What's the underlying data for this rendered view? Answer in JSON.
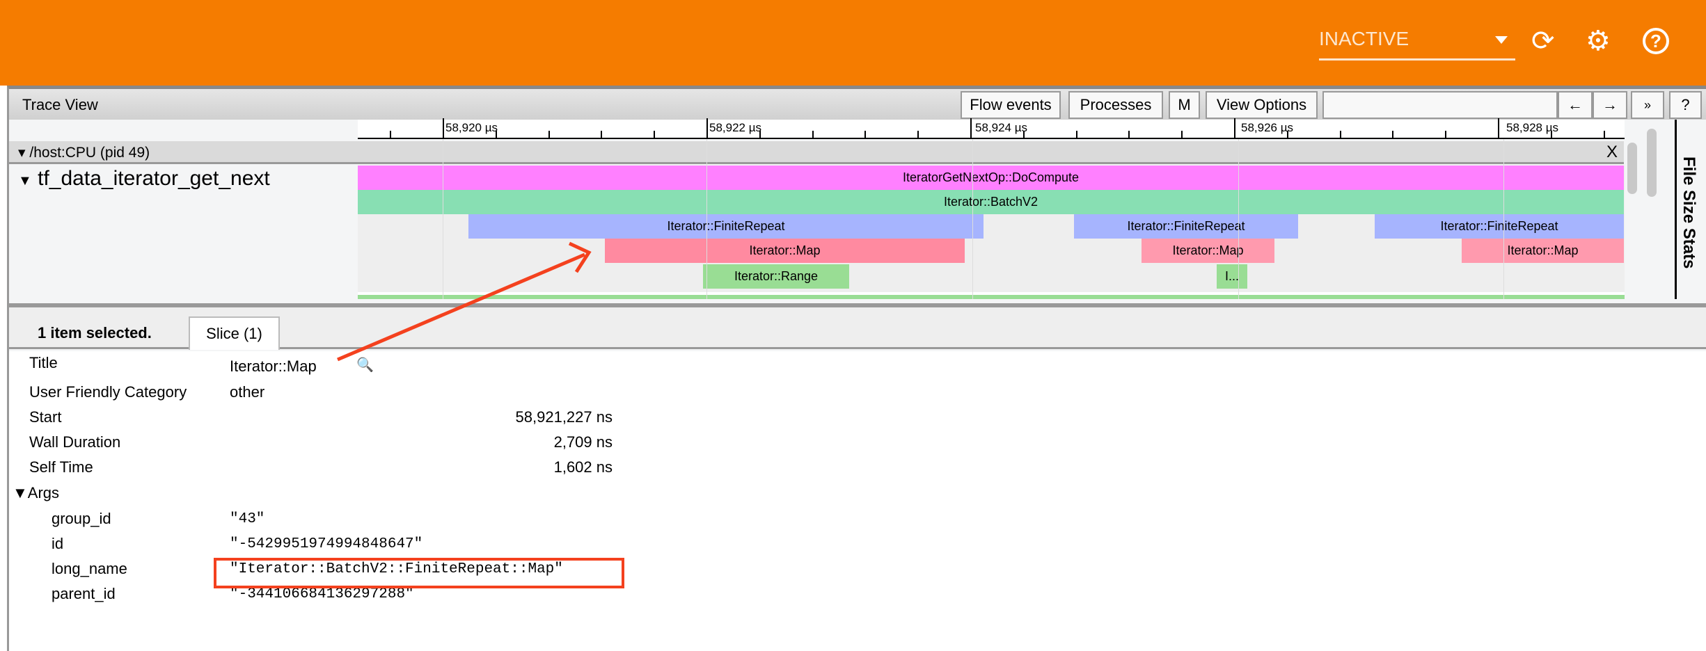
{
  "header": {
    "status": "INACTIVE",
    "icons": [
      "dropdown-arrow-icon",
      "refresh-icon",
      "settings-gear-icon",
      "help-icon"
    ],
    "color": "#f57c00"
  },
  "toolbar": {
    "title": "Trace View",
    "buttons": [
      "Flow events",
      "Processes",
      "M",
      "View Options"
    ],
    "search_value": "",
    "prev": "←",
    "next": "→",
    "more": "»",
    "help": "?"
  },
  "ruler": {
    "ticks": [
      "58,920 µs",
      "58,922 µs",
      "58,924 µs",
      "58,926 µs",
      "58,928 µs"
    ]
  },
  "process": {
    "label": "/host:CPU (pid 49)",
    "close": "X"
  },
  "track": {
    "name": "tf_data_iterator_get_next",
    "slices": [
      {
        "label": "IteratorGetNextOp::DoCompute",
        "color": "#ff80ff"
      },
      {
        "label": "Iterator::BatchV2",
        "color": "#88dfb3"
      },
      {
        "label": "Iterator::FiniteRepeat",
        "color": "#a6b4fe"
      },
      {
        "label": "Iterator::FiniteRepeat",
        "color": "#a6b4fe"
      },
      {
        "label": "Iterator::FiniteRepeat",
        "color": "#a6b4fe"
      },
      {
        "label": "Iterator::Map",
        "color": "#ff8aa0"
      },
      {
        "label": "Iterator::Map",
        "color": "#ff9aae"
      },
      {
        "label": "Iterator::Map",
        "color": "#ff9aae"
      },
      {
        "label": "Iterator::Range",
        "color": "#99dd94"
      },
      {
        "label": "I...",
        "color": "#99dd94"
      }
    ]
  },
  "side_panel": {
    "label": "File Size Stats"
  },
  "analysis": {
    "selected": "1 item selected.",
    "tab": "Slice (1)",
    "title_label": "Title",
    "title_value": "Iterator::Map",
    "category_label": "User Friendly Category",
    "category_value": "other",
    "start_label": "Start",
    "start_value": "58,921,227 ns",
    "wall_label": "Wall Duration",
    "wall_value": "2,709 ns",
    "self_label": "Self Time",
    "self_value": "1,602 ns",
    "args_label": "▼Args",
    "args": [
      {
        "key": "group_id",
        "value": "\"43\""
      },
      {
        "key": "id",
        "value": "\"-5429951974994848647\""
      },
      {
        "key": "long_name",
        "value": "\"Iterator::BatchV2::FiniteRepeat::Map\""
      },
      {
        "key": "parent_id",
        "value": "\"-344106684136297288\""
      }
    ]
  },
  "annotation_color": "#f4411e"
}
